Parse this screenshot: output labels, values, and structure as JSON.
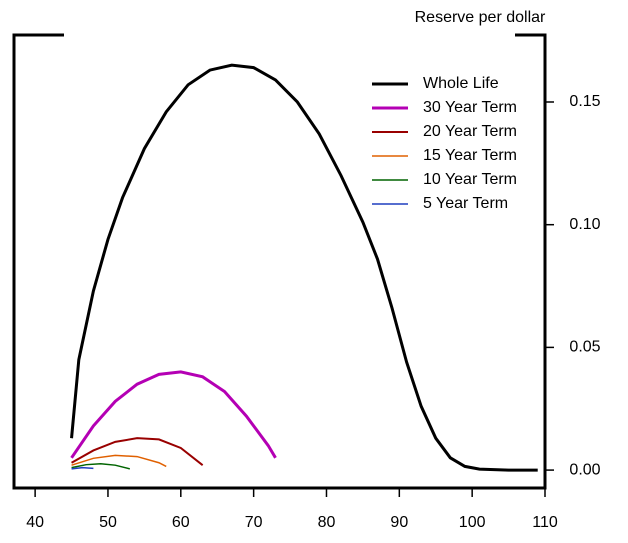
{
  "chart_data": {
    "type": "line",
    "y_label": "Reserve per dollar",
    "xlim": [
      37.1,
      110
    ],
    "xticks": [
      40,
      50,
      60,
      70,
      80,
      90,
      100,
      110
    ],
    "ylim": [
      -0.0073,
      0.1773
    ],
    "yticks": [
      {
        "value": 0,
        "label": "0.00"
      },
      {
        "value": 0.05,
        "label": "0.05"
      },
      {
        "value": 0.1,
        "label": "0.10"
      },
      {
        "value": 0.15,
        "label": "0.15"
      }
    ],
    "legend": "top-right",
    "series": [
      {
        "name": "Whole Life",
        "color": "#000000",
        "width": 3,
        "x": [
          45,
          46,
          48,
          50,
          52,
          55,
          58,
          61,
          64,
          67,
          70,
          73,
          76,
          79,
          82,
          85,
          87,
          89,
          91,
          93,
          95,
          97,
          99,
          101,
          105,
          109
        ],
        "values": [
          0.013,
          0.045,
          0.073,
          0.094,
          0.111,
          0.131,
          0.146,
          0.157,
          0.163,
          0.165,
          0.164,
          0.159,
          0.15,
          0.137,
          0.12,
          0.101,
          0.086,
          0.066,
          0.044,
          0.026,
          0.013,
          0.005,
          0.0015,
          0.0004,
          0,
          0
        ]
      },
      {
        "name": "30 Year Term",
        "color": "#b400b4",
        "width": 3,
        "x": [
          45,
          48,
          51,
          54,
          57,
          60,
          63,
          66,
          69,
          72,
          73
        ],
        "values": [
          0.005,
          0.018,
          0.028,
          0.035,
          0.039,
          0.04,
          0.038,
          0.032,
          0.022,
          0.01,
          0.005
        ]
      },
      {
        "name": "20 Year Term",
        "color": "#990000",
        "width": 2,
        "x": [
          45,
          48,
          51,
          54,
          57,
          60,
          63
        ],
        "values": [
          0.003,
          0.008,
          0.0115,
          0.013,
          0.0125,
          0.009,
          0.002
        ]
      },
      {
        "name": "15 Year Term",
        "color": "#e06000",
        "width": 1.5,
        "x": [
          45,
          48,
          51,
          54,
          57,
          58
        ],
        "values": [
          0.002,
          0.0048,
          0.006,
          0.0055,
          0.003,
          0.0015
        ]
      },
      {
        "name": "10 Year Term",
        "color": "#006400",
        "width": 1.5,
        "x": [
          45,
          47,
          49,
          51,
          53
        ],
        "values": [
          0.001,
          0.0022,
          0.0026,
          0.002,
          0.0005
        ]
      },
      {
        "name": "5 Year Term",
        "color": "#1f3fbf",
        "width": 1.5,
        "x": [
          45,
          46.5,
          48
        ],
        "values": [
          0.0005,
          0.001,
          0.0007
        ]
      }
    ]
  }
}
